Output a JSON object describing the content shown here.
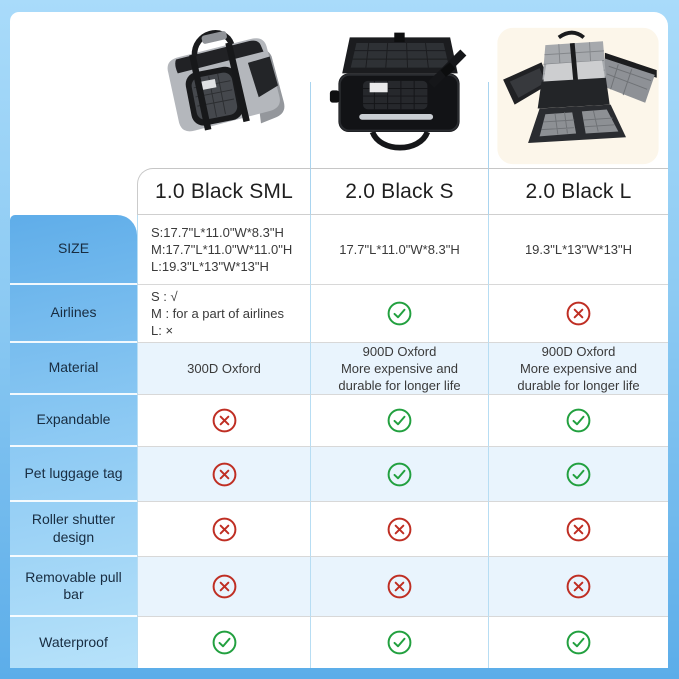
{
  "products": [
    {
      "name": "1.0 Black SML",
      "image": "gray-duffel-pet-carrier-photo"
    },
    {
      "name": "2.0 Black S",
      "image": "black-pet-carrier-open-top-flap-photo"
    },
    {
      "name": "2.0 Black L",
      "image": "black-pet-carrier-expanded-flaps-photo"
    }
  ],
  "table": {
    "rows": [
      {
        "label": "SIZE",
        "tint": false,
        "cells": [
          {
            "type": "text",
            "align": "left",
            "lines": [
              "S:17.7\"L*11.0\"W*8.3\"H",
              "M:17.7\"L*11.0\"W*11.0\"H",
              "L:19.3\"L*13\"W*13\"H"
            ]
          },
          {
            "type": "text",
            "align": "center",
            "lines": [
              "17.7\"L*11.0\"W*8.3\"H"
            ]
          },
          {
            "type": "text",
            "align": "center",
            "lines": [
              "19.3\"L*13\"W*13\"H"
            ]
          }
        ]
      },
      {
        "label": "Airlines",
        "tint": false,
        "cells": [
          {
            "type": "text",
            "align": "left",
            "lines": [
              "S : √",
              "M : for a part of airlines",
              "L: ×"
            ]
          },
          {
            "type": "icon",
            "value": "yes"
          },
          {
            "type": "icon",
            "value": "no"
          }
        ]
      },
      {
        "label": "Material",
        "tint": true,
        "cells": [
          {
            "type": "text",
            "align": "center",
            "lines": [
              "300D Oxford"
            ]
          },
          {
            "type": "text",
            "align": "center",
            "lines": [
              "900D Oxford",
              "More expensive and",
              "durable for longer life"
            ]
          },
          {
            "type": "text",
            "align": "center",
            "lines": [
              "900D Oxford",
              "More expensive and",
              "durable for longer life"
            ]
          }
        ]
      },
      {
        "label": "Expandable",
        "tint": false,
        "cells": [
          {
            "type": "icon",
            "value": "no"
          },
          {
            "type": "icon",
            "value": "yes"
          },
          {
            "type": "icon",
            "value": "yes"
          }
        ]
      },
      {
        "label": "Pet luggage tag",
        "tint": true,
        "cells": [
          {
            "type": "icon",
            "value": "no"
          },
          {
            "type": "icon",
            "value": "yes"
          },
          {
            "type": "icon",
            "value": "yes"
          }
        ]
      },
      {
        "label": "Roller shutter design",
        "tint": false,
        "cells": [
          {
            "type": "icon",
            "value": "no"
          },
          {
            "type": "icon",
            "value": "no"
          },
          {
            "type": "icon",
            "value": "no"
          }
        ]
      },
      {
        "label": "Removable pull bar",
        "tint": true,
        "cells": [
          {
            "type": "icon",
            "value": "no"
          },
          {
            "type": "icon",
            "value": "no"
          },
          {
            "type": "icon",
            "value": "no"
          }
        ]
      },
      {
        "label": "Waterproof",
        "tint": false,
        "cells": [
          {
            "type": "icon",
            "value": "yes"
          },
          {
            "type": "icon",
            "value": "yes"
          },
          {
            "type": "icon",
            "value": "yes"
          }
        ]
      }
    ]
  },
  "icons": {
    "yes": "check-circle-icon",
    "no": "cross-circle-icon"
  },
  "colors": {
    "yes": "#22a03f",
    "no": "#bf2e23",
    "divider_blue": "#a9d4ef",
    "row_tint": "#e9f4fd",
    "label_column_top": "#5fade9",
    "label_column_bottom": "#b7e2fa",
    "background_top": "#a9dbfa",
    "background_bottom": "#5cade9",
    "label_text": "#182c40",
    "header_text": "#1f1f1f"
  }
}
